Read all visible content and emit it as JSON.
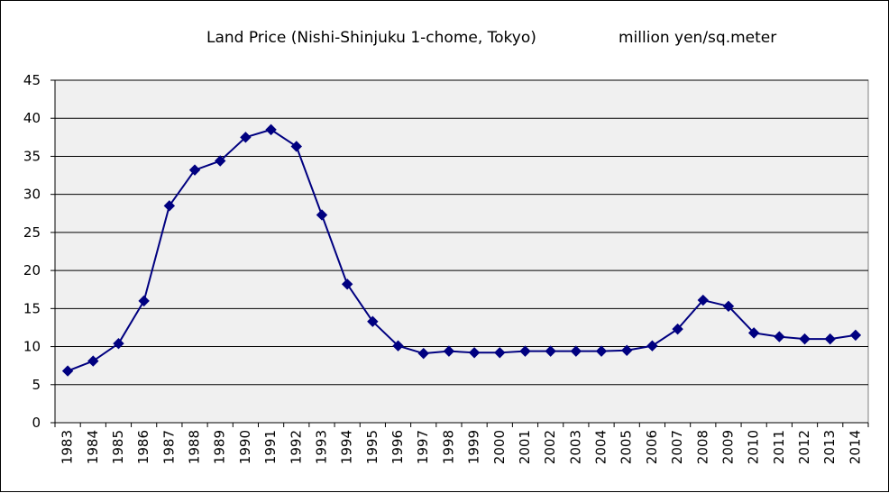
{
  "chart_data": {
    "type": "line",
    "title": "Land Price (Nishi-Shinjuku 1-chome, Tokyo)",
    "unit_label": "million yen/sq.meter",
    "xlabel": "",
    "ylabel": "",
    "x": [
      "1983",
      "1984",
      "1985",
      "1986",
      "1987",
      "1988",
      "1989",
      "1990",
      "1991",
      "1992",
      "1993",
      "1994",
      "1995",
      "1996",
      "1997",
      "1998",
      "1999",
      "2000",
      "2001",
      "2002",
      "2003",
      "2004",
      "2005",
      "2006",
      "2007",
      "2008",
      "2009",
      "2010",
      "2011",
      "2012",
      "2013",
      "2014"
    ],
    "series": [
      {
        "values": [
          6.8,
          8.1,
          10.4,
          16.0,
          28.5,
          33.2,
          34.4,
          37.5,
          38.5,
          36.3,
          27.3,
          18.2,
          13.3,
          10.1,
          9.1,
          9.4,
          9.2,
          9.2,
          9.4,
          9.4,
          9.4,
          9.4,
          9.5,
          10.1,
          12.3,
          16.1,
          15.3,
          11.8,
          11.3,
          11.0,
          11.0,
          11.5
        ],
        "color": "#000080",
        "marker": "diamond"
      }
    ],
    "ylim": [
      0,
      45
    ],
    "yticks": [
      "0",
      "5",
      "10",
      "15",
      "20",
      "25",
      "30",
      "35",
      "40",
      "45"
    ],
    "grid": "horizontal",
    "legend": "none",
    "plot_background": "#f0f0f0",
    "gridline_color": "#000000"
  }
}
